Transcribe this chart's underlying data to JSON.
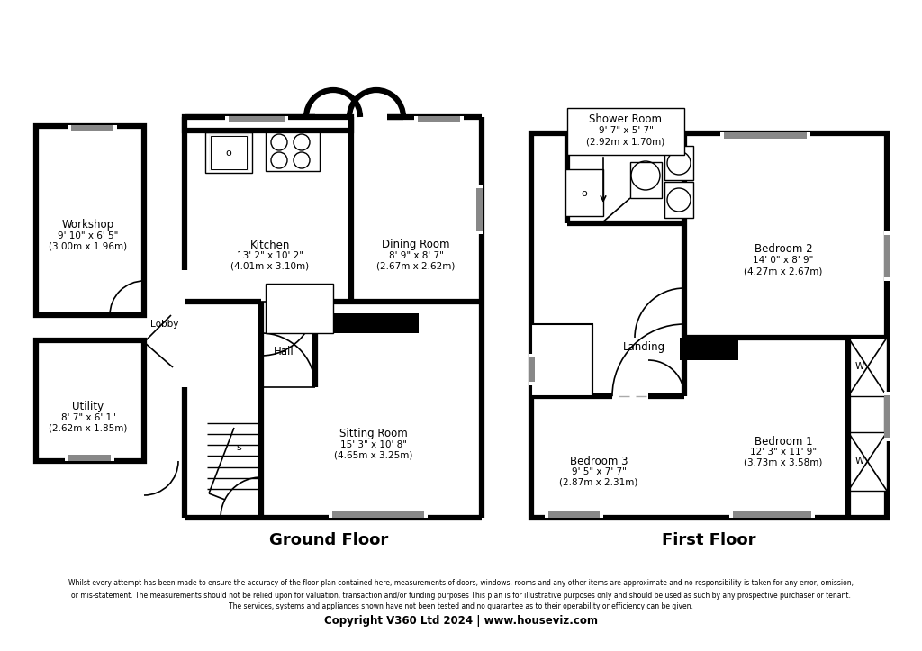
{
  "background_color": "#ffffff",
  "wall_color": "#000000",
  "lw": 4.5,
  "thin_lw": 1.2,
  "rooms": {
    "ground_floor_label": "Ground Floor",
    "first_floor_label": "First Floor",
    "workshop": {
      "name": "Workshop",
      "dim1": "9' 10\" x 6' 5\"",
      "dim2": "(3.00m x 1.96m)"
    },
    "utility": {
      "name": "Utility",
      "dim1": "8' 7\" x 6' 1\"",
      "dim2": "(2.62m x 1.85m)"
    },
    "lobby": {
      "name": "Lobby"
    },
    "kitchen": {
      "name": "Kitchen",
      "dim1": "13' 2\" x 10' 2\"",
      "dim2": "(4.01m x 3.10m)"
    },
    "dining_room": {
      "name": "Dining Room",
      "dim1": "8' 9\" x 8' 7\"",
      "dim2": "(2.67m x 2.62m)"
    },
    "hall": {
      "name": "Hall"
    },
    "sitting_room": {
      "name": "Sitting Room",
      "dim1": "15' 3\" x 10' 8\"",
      "dim2": "(4.65m x 3.25m)"
    },
    "shower_room": {
      "name": "Shower Room",
      "dim1": "9' 7\" x 5' 7\"",
      "dim2": "(2.92m x 1.70m)"
    },
    "bedroom1": {
      "name": "Bedroom 1",
      "dim1": "12' 3\" x 11' 9\"",
      "dim2": "(3.73m x 3.58m)"
    },
    "bedroom2": {
      "name": "Bedroom 2",
      "dim1": "14' 0\" x 8' 9\"",
      "dim2": "(4.27m x 2.67m)"
    },
    "bedroom3": {
      "name": "Bedroom 3",
      "dim1": "9' 5\" x 7' 7\"",
      "dim2": "(2.87m x 2.31m)"
    },
    "landing": {
      "name": "Landing"
    }
  },
  "disclaimer_line1": "Whilst every attempt has been made to ensure the accuracy of the floor plan contained here, measurements of doors, windows, rooms and any other items are approximate and no responsibility is taken for any error, omission,",
  "disclaimer_line2": "or mis-statement. The measurements should not be relied upon for valuation, transaction and/or funding purposes This plan is for illustrative purposes only and should be used as such by any prospective purchaser or tenant.",
  "disclaimer_line3": "The services, systems and appliances shown have not been tested and no guarantee as to their operability or efficiency can be given.",
  "copyright": "Copyright V360 Ltd 2024 | www.houseviz.com"
}
